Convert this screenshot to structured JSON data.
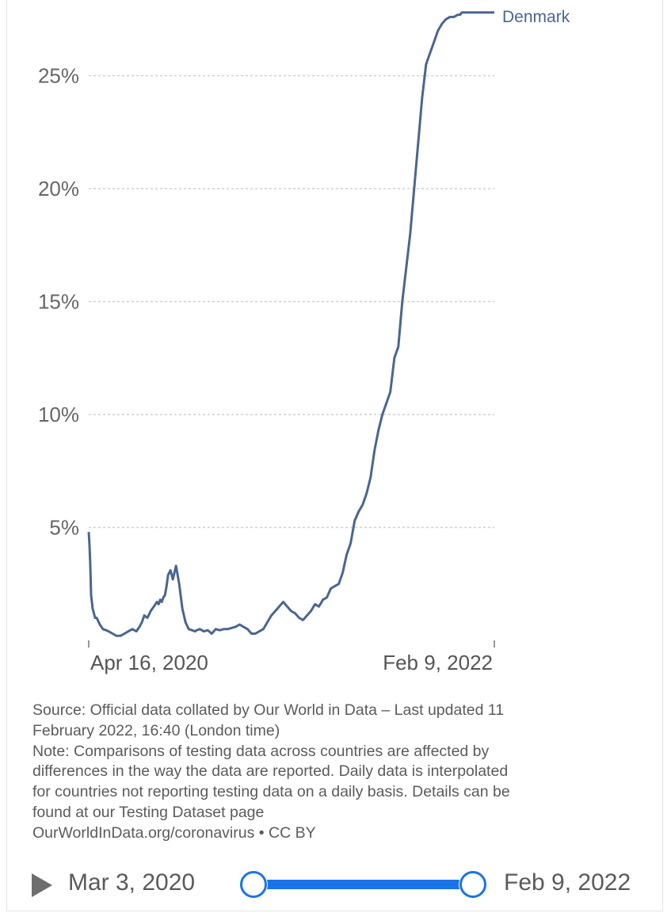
{
  "chart_data": {
    "type": "line",
    "title": "",
    "xlabel": "",
    "ylabel": "",
    "ylim": [
      0,
      28
    ],
    "y_ticks": [
      5,
      10,
      15,
      20,
      25
    ],
    "y_tick_labels": [
      "5%",
      "10%",
      "15%",
      "20%",
      "25%"
    ],
    "x_tick_labels": [
      "Apr 16, 2020",
      "Feb 9, 2022"
    ],
    "grid": true,
    "series": [
      {
        "name": "Denmark",
        "color": "#4a6690",
        "x": [
          0,
          1,
          2,
          3,
          5,
          8,
          10,
          14,
          18,
          22,
          25,
          30,
          35,
          40,
          45,
          50,
          55,
          60,
          64,
          67,
          70,
          74,
          78,
          82,
          86,
          88,
          90,
          92,
          94,
          96,
          98,
          100,
          103,
          106,
          110,
          114,
          118,
          122,
          126,
          130,
          134,
          136,
          140,
          145,
          150,
          155,
          160,
          165,
          170,
          175,
          180,
          185,
          190,
          195,
          200,
          205,
          210,
          215,
          220,
          225,
          230,
          235,
          240,
          245,
          250,
          255,
          260,
          265,
          270,
          275,
          280,
          285,
          290,
          295,
          300,
          305,
          310,
          315,
          320,
          325,
          330,
          335,
          340,
          345,
          350,
          355,
          360,
          365,
          370,
          375,
          380,
          385,
          390,
          395,
          400,
          405,
          410,
          415,
          420,
          425,
          430,
          435,
          440,
          445,
          450,
          455,
          460,
          465,
          468,
          470,
          472,
          474,
          476,
          478,
          480,
          482,
          484,
          486,
          488,
          490,
          492,
          494,
          496,
          498,
          500,
          502,
          504,
          506,
          507,
          508,
          509,
          510,
          511
        ],
        "values": [
          4.8,
          4.2,
          3.3,
          2.0,
          1.4,
          1.0,
          1.0,
          0.7,
          0.5,
          0.45,
          0.4,
          0.3,
          0.2,
          0.2,
          0.3,
          0.4,
          0.5,
          0.4,
          0.6,
          0.8,
          1.1,
          1.0,
          1.3,
          1.5,
          1.7,
          1.6,
          1.8,
          1.7,
          1.9,
          2.0,
          2.4,
          2.9,
          3.1,
          2.7,
          3.3,
          2.5,
          1.4,
          0.8,
          0.5,
          0.45,
          0.4,
          0.45,
          0.5,
          0.4,
          0.45,
          0.3,
          0.5,
          0.45,
          0.5,
          0.5,
          0.55,
          0.6,
          0.7,
          0.6,
          0.5,
          0.3,
          0.3,
          0.4,
          0.5,
          0.8,
          1.1,
          1.3,
          1.5,
          1.7,
          1.5,
          1.3,
          1.2,
          1.0,
          0.9,
          1.1,
          1.3,
          1.6,
          1.5,
          1.8,
          1.9,
          2.3,
          2.4,
          2.5,
          3.0,
          3.8,
          4.3,
          5.3,
          5.7,
          6.0,
          6.5,
          7.2,
          8.4,
          9.3,
          10.0,
          10.5,
          11.0,
          12.5,
          13.0,
          15.0,
          16.5,
          18.0,
          20.0,
          22.0,
          24.0,
          25.5,
          26.0,
          26.5,
          27.0,
          27.3,
          27.5,
          27.6,
          27.6,
          27.7,
          27.7,
          27.8,
          27.8,
          27.8,
          27.8,
          27.8,
          27.8,
          27.8,
          27.8,
          27.8,
          27.8,
          27.8,
          27.8,
          27.8,
          27.8,
          27.8,
          27.8,
          27.8,
          27.8,
          27.8,
          27.8,
          27.8,
          27.8,
          27.8,
          27.8
        ],
        "label": "Denmark"
      }
    ]
  },
  "source": {
    "line1": "Source: Official data collated by Our World in Data – Last updated 11",
    "line2": "February 2022, 16:40 (London time)",
    "note1": "Note: Comparisons of testing data across countries are affected by",
    "note2": "differences in the way the data are reported. Daily data is interpolated",
    "note3": "for countries not reporting testing data on a daily basis. Details can be",
    "note4": "found at our Testing Dataset page",
    "credit": "OurWorldInData.org/coronavirus • CC BY"
  },
  "timeline": {
    "start_date": "Mar 3, 2020",
    "end_date": "Feb 9, 2022",
    "accent": "#1a73e8"
  }
}
